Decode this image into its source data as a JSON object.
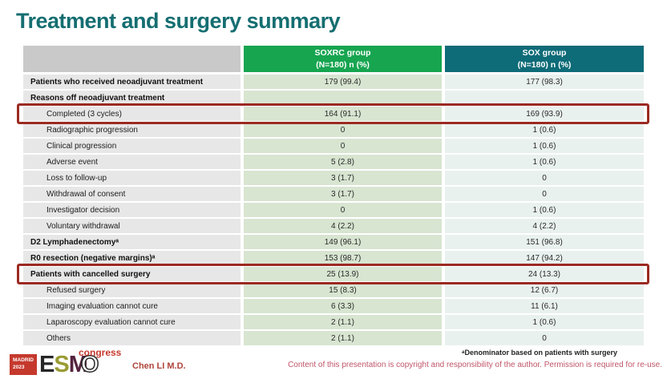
{
  "title": "Treatment and surgery summary",
  "colors": {
    "title_teal": "#156E71",
    "soxrc_header_green": "#17A550",
    "sox_header_teal": "#0E6B78",
    "highlight_red": "#9B2A22",
    "soxrc_cell_green": "#D8E5D1",
    "sox_cell_aqua": "#E9F1EF",
    "label_cell_gray": "#E8E7E7"
  },
  "table": {
    "columns": {
      "group1": "SOXRC group\n(N=180)  n (%)",
      "group2": "SOX group\n(N=180)  n (%)"
    },
    "rows": [
      {
        "label": "Patients who received neoadjuvant treatment",
        "soxrc": "179 (99.4)",
        "sox": "177 (98.3)"
      },
      {
        "label": "Reasons off neoadjuvant treatment",
        "soxrc": "",
        "sox": ""
      },
      {
        "label": "Completed (3 cycles)",
        "soxrc": "164 (91.1)",
        "sox": "169 (93.9)"
      },
      {
        "label": "Radiographic progression",
        "soxrc": "0",
        "sox": "1 (0.6)"
      },
      {
        "label": "Clinical progression",
        "soxrc": "0",
        "sox": "1 (0.6)"
      },
      {
        "label": "Adverse event",
        "soxrc": "5 (2.8)",
        "sox": "1 (0.6)"
      },
      {
        "label": "Loss to follow-up",
        "soxrc": "3 (1.7)",
        "sox": "0"
      },
      {
        "label": "Withdrawal of consent",
        "soxrc": "3 (1.7)",
        "sox": "0"
      },
      {
        "label": "Investigator decision",
        "soxrc": "0",
        "sox": "1 (0.6)"
      },
      {
        "label": "Voluntary withdrawal",
        "soxrc": "4 (2.2)",
        "sox": "4 (2.2)"
      },
      {
        "label": "D2 Lymphadenectomyᵃ",
        "soxrc": "149 (96.1)",
        "sox": "151 (96.8)"
      },
      {
        "label": "R0 resection (negative margins)ᵃ",
        "soxrc": "153 (98.7)",
        "sox": "147 (94.2)"
      },
      {
        "label": "Patients with cancelled surgery",
        "soxrc": "25 (13.9)",
        "sox": "24 (13.3)"
      },
      {
        "label": "Refused surgery",
        "soxrc": "15 (8.3)",
        "sox": "12 (6.7)"
      },
      {
        "label": "Imaging evaluation cannot cure",
        "soxrc": "6 (3.3)",
        "sox": "11 (6.1)"
      },
      {
        "label": "Laparoscopy evaluation cannot cure",
        "soxrc": "2 (1.1)",
        "sox": "1 (0.6)"
      },
      {
        "label": "Others",
        "soxrc": "2 (1.1)",
        "sox": "0"
      }
    ]
  },
  "footer": {
    "logo": {
      "madrid": "MADRID\n2023",
      "e": "E",
      "s": "S",
      "m": "M",
      "o": "O",
      "congress": "congress"
    },
    "author": "Chen LI M.D.",
    "footnote": "ᵃDenominator based on patients with surgery",
    "copyright": "Content of this presentation is copyright and responsibility of the author. Permission is required for re-use."
  }
}
